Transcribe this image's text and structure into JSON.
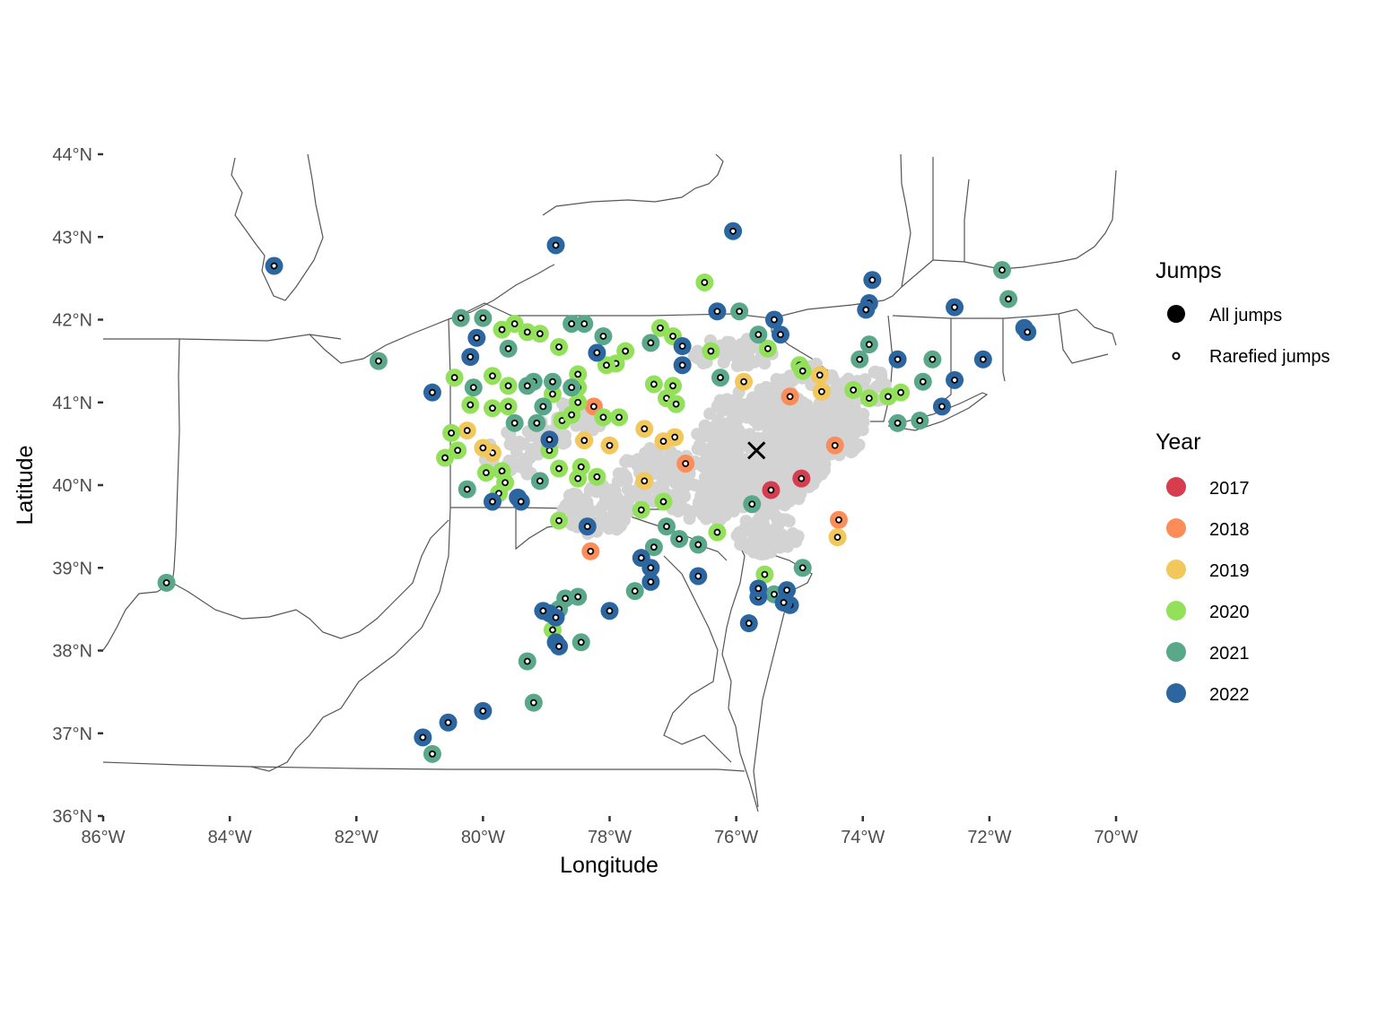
{
  "chart_data": {
    "type": "scatter",
    "title": "",
    "xlabel": "Longitude",
    "ylabel": "Latitude",
    "xlim": [
      -86,
      -70
    ],
    "ylim": [
      36,
      44
    ],
    "x_ticks": [
      {
        "value": -86,
        "label": "86°W"
      },
      {
        "value": -84,
        "label": "84°W"
      },
      {
        "value": -82,
        "label": "82°W"
      },
      {
        "value": -80,
        "label": "80°W"
      },
      {
        "value": -78,
        "label": "78°W"
      },
      {
        "value": -76,
        "label": "76°W"
      },
      {
        "value": -74,
        "label": "74°W"
      },
      {
        "value": -72,
        "label": "72°W"
      },
      {
        "value": -70,
        "label": "70°W"
      }
    ],
    "y_ticks": [
      {
        "value": 36,
        "label": "36°N"
      },
      {
        "value": 37,
        "label": "37°N"
      },
      {
        "value": 38,
        "label": "38°N"
      },
      {
        "value": 39,
        "label": "39°N"
      },
      {
        "value": 40,
        "label": "40°N"
      },
      {
        "value": 41,
        "label": "41°N"
      },
      {
        "value": 42,
        "label": "42°N"
      },
      {
        "value": 43,
        "label": "43°N"
      },
      {
        "value": 44,
        "label": "44°N"
      }
    ],
    "origin_marker": {
      "lon": -75.68,
      "lat": 40.42,
      "symbol": "×"
    },
    "legend": {
      "jumps_title": "Jumps",
      "jumps_items": [
        {
          "label": "All jumps",
          "style": "filled"
        },
        {
          "label": "Rarefied jumps",
          "style": "ring"
        }
      ],
      "year_title": "Year",
      "year_items": [
        {
          "label": "2017",
          "color": "#d53e4f"
        },
        {
          "label": "2018",
          "color": "#fc8d59"
        },
        {
          "label": "2019",
          "color": "#f2c75c"
        },
        {
          "label": "2020",
          "color": "#93e05a"
        },
        {
          "label": "2021",
          "color": "#5aa88a"
        },
        {
          "label": "2022",
          "color": "#2c66a0"
        }
      ]
    },
    "colors": {
      "2017": "#d53e4f",
      "2018": "#fc8d59",
      "2019": "#f2c75c",
      "2020": "#93e05a",
      "2021": "#5aa88a",
      "2022": "#2c66a0",
      "spread": "#d3d3d3"
    },
    "series": [
      {
        "name": "2017",
        "points": [
          [
            -74.97,
            40.08
          ],
          [
            -75.45,
            39.94
          ]
        ]
      },
      {
        "name": "2018",
        "points": [
          [
            -74.44,
            40.48
          ],
          [
            -75.15,
            41.07
          ],
          [
            -76.8,
            40.26
          ],
          [
            -78.3,
            39.2
          ],
          [
            -78.25,
            40.95
          ],
          [
            -74.38,
            39.58
          ]
        ]
      },
      {
        "name": "2019",
        "points": [
          [
            -75.88,
            41.25
          ],
          [
            -74.68,
            41.33
          ],
          [
            -74.65,
            41.13
          ],
          [
            -76.97,
            40.58
          ],
          [
            -77.15,
            40.53
          ],
          [
            -77.45,
            40.68
          ],
          [
            -78.4,
            40.54
          ],
          [
            -78.0,
            40.48
          ],
          [
            -79.85,
            40.39
          ],
          [
            -80.0,
            40.45
          ],
          [
            -80.25,
            40.66
          ],
          [
            -77.45,
            40.05
          ],
          [
            -74.4,
            39.37
          ]
        ]
      },
      {
        "name": "2020",
        "points": [
          [
            -76.5,
            42.45
          ],
          [
            -79.7,
            41.88
          ],
          [
            -79.5,
            41.95
          ],
          [
            -79.3,
            41.85
          ],
          [
            -79.1,
            41.83
          ],
          [
            -78.8,
            41.67
          ],
          [
            -77.2,
            41.9
          ],
          [
            -77.0,
            41.8
          ],
          [
            -76.4,
            41.62
          ],
          [
            -75.5,
            41.65
          ],
          [
            -75.0,
            41.45
          ],
          [
            -74.95,
            41.38
          ],
          [
            -74.15,
            41.15
          ],
          [
            -73.9,
            41.05
          ],
          [
            -73.6,
            41.07
          ],
          [
            -73.4,
            41.12
          ],
          [
            -77.3,
            41.22
          ],
          [
            -77.1,
            41.05
          ],
          [
            -77.0,
            41.2
          ],
          [
            -76.95,
            40.98
          ],
          [
            -77.75,
            41.62
          ],
          [
            -77.9,
            41.47
          ],
          [
            -78.05,
            41.45
          ],
          [
            -78.5,
            41.34
          ],
          [
            -78.5,
            41.18
          ],
          [
            -78.9,
            41.1
          ],
          [
            -78.5,
            41.0
          ],
          [
            -78.1,
            40.82
          ],
          [
            -77.85,
            40.82
          ],
          [
            -78.75,
            40.78
          ],
          [
            -78.95,
            40.42
          ],
          [
            -78.8,
            40.2
          ],
          [
            -78.45,
            40.22
          ],
          [
            -78.5,
            40.08
          ],
          [
            -78.2,
            40.1
          ],
          [
            -79.7,
            40.17
          ],
          [
            -79.95,
            40.15
          ],
          [
            -79.65,
            40.03
          ],
          [
            -79.75,
            39.9
          ],
          [
            -80.4,
            40.42
          ],
          [
            -80.5,
            40.63
          ],
          [
            -80.6,
            40.33
          ],
          [
            -79.85,
            41.32
          ],
          [
            -79.6,
            41.2
          ],
          [
            -80.45,
            41.3
          ],
          [
            -80.2,
            40.97
          ],
          [
            -79.85,
            40.93
          ],
          [
            -79.6,
            40.95
          ],
          [
            -77.15,
            39.8
          ],
          [
            -77.5,
            39.7
          ],
          [
            -78.8,
            39.57
          ],
          [
            -76.3,
            39.43
          ],
          [
            -75.55,
            38.92
          ],
          [
            -78.9,
            38.25
          ],
          [
            -76.95,
            40.98
          ],
          [
            -78.6,
            40.85
          ]
        ]
      },
      {
        "name": "2021",
        "points": [
          [
            -71.8,
            42.6
          ],
          [
            -71.7,
            42.25
          ],
          [
            -75.95,
            42.1
          ],
          [
            -75.65,
            41.82
          ],
          [
            -73.9,
            41.7
          ],
          [
            -74.05,
            41.52
          ],
          [
            -72.9,
            41.52
          ],
          [
            -73.05,
            41.25
          ],
          [
            -73.1,
            40.78
          ],
          [
            -73.45,
            40.75
          ],
          [
            -76.25,
            41.3
          ],
          [
            -78.4,
            41.95
          ],
          [
            -78.6,
            41.95
          ],
          [
            -80.0,
            42.02
          ],
          [
            -80.35,
            42.02
          ],
          [
            -79.6,
            41.65
          ],
          [
            -78.1,
            41.8
          ],
          [
            -77.35,
            41.72
          ],
          [
            -79.2,
            41.25
          ],
          [
            -79.3,
            41.2
          ],
          [
            -78.9,
            41.25
          ],
          [
            -79.05,
            40.95
          ],
          [
            -79.15,
            40.75
          ],
          [
            -78.6,
            41.18
          ],
          [
            -80.15,
            41.18
          ],
          [
            -79.5,
            40.75
          ],
          [
            -79.1,
            40.05
          ],
          [
            -80.25,
            39.95
          ],
          [
            -77.1,
            39.5
          ],
          [
            -76.9,
            39.35
          ],
          [
            -76.6,
            39.28
          ],
          [
            -77.3,
            39.25
          ],
          [
            -77.6,
            38.72
          ],
          [
            -78.7,
            38.63
          ],
          [
            -78.8,
            38.5
          ],
          [
            -78.5,
            38.65
          ],
          [
            -78.45,
            38.1
          ],
          [
            -79.3,
            37.87
          ],
          [
            -79.2,
            37.37
          ],
          [
            -80.8,
            36.75
          ],
          [
            -81.65,
            41.5
          ],
          [
            -85.0,
            38.82
          ],
          [
            -74.95,
            39.0
          ],
          [
            -75.4,
            38.68
          ],
          [
            -75.75,
            39.77
          ]
        ]
      },
      {
        "name": "2022",
        "points": [
          [
            -76.05,
            43.07
          ],
          [
            -78.85,
            42.9
          ],
          [
            -83.3,
            42.65
          ],
          [
            -73.85,
            42.48
          ],
          [
            -73.9,
            42.2
          ],
          [
            -73.95,
            42.12
          ],
          [
            -72.55,
            42.15
          ],
          [
            -71.45,
            41.9
          ],
          [
            -71.4,
            41.85
          ],
          [
            -72.1,
            41.52
          ],
          [
            -72.55,
            41.27
          ],
          [
            -72.75,
            40.95
          ],
          [
            -73.45,
            41.52
          ],
          [
            -75.4,
            42.0
          ],
          [
            -75.3,
            41.82
          ],
          [
            -76.3,
            42.1
          ],
          [
            -80.1,
            41.78
          ],
          [
            -80.2,
            41.55
          ],
          [
            -78.2,
            41.6
          ],
          [
            -76.85,
            41.68
          ],
          [
            -76.85,
            41.45
          ],
          [
            -80.8,
            41.12
          ],
          [
            -78.95,
            40.55
          ],
          [
            -79.85,
            39.8
          ],
          [
            -79.45,
            39.85
          ],
          [
            -79.4,
            39.8
          ],
          [
            -78.35,
            39.5
          ],
          [
            -77.5,
            39.12
          ],
          [
            -77.35,
            39.0
          ],
          [
            -77.35,
            38.83
          ],
          [
            -76.6,
            38.9
          ],
          [
            -75.8,
            38.33
          ],
          [
            -75.65,
            38.65
          ],
          [
            -75.65,
            38.75
          ],
          [
            -75.2,
            38.73
          ],
          [
            -75.15,
            38.55
          ],
          [
            -75.25,
            38.58
          ],
          [
            -78.0,
            38.48
          ],
          [
            -78.95,
            38.45
          ],
          [
            -79.05,
            38.48
          ],
          [
            -78.85,
            38.4
          ],
          [
            -78.85,
            38.1
          ],
          [
            -78.8,
            38.05
          ],
          [
            -80.0,
            37.27
          ],
          [
            -80.55,
            37.13
          ],
          [
            -80.95,
            36.95
          ]
        ]
      }
    ]
  }
}
